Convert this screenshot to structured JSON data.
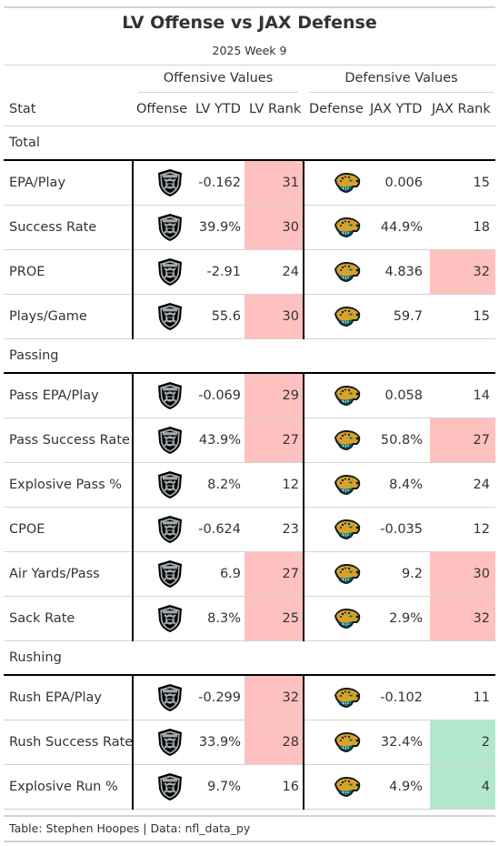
{
  "title": "LV Offense vs JAX Defense",
  "subtitle": "2025 Week 9",
  "spanners": {
    "offense": "Offensive Values",
    "defense": "Defensive Values"
  },
  "columns": {
    "stat": "Stat",
    "offense": "Offense",
    "lv_ytd": "LV YTD",
    "lv_rank": "LV Rank",
    "defense": "Defense",
    "jax_ytd": "JAX YTD",
    "jax_rank": "JAX Rank"
  },
  "colors": {
    "bad": "#ffc0c0",
    "good": "#b3e8cc",
    "raiders": "#000000",
    "jaguars_teal": "#006778",
    "jaguars_gold": "#d7a22a"
  },
  "icons": {
    "offense_logo": "raiders-shield-logo",
    "defense_logo": "jaguars-head-logo"
  },
  "groups": [
    {
      "label": "Total",
      "rows": [
        {
          "stat": "EPA/Play",
          "lv_ytd": "-0.162",
          "lv_rank": "31",
          "jax_ytd": "0.006",
          "jax_rank": "15",
          "lv_hl": "bad",
          "jax_hl": ""
        },
        {
          "stat": "Success Rate",
          "lv_ytd": "39.9%",
          "lv_rank": "30",
          "jax_ytd": "44.9%",
          "jax_rank": "18",
          "lv_hl": "bad",
          "jax_hl": ""
        },
        {
          "stat": "PROE",
          "lv_ytd": "-2.91",
          "lv_rank": "24",
          "jax_ytd": "4.836",
          "jax_rank": "32",
          "lv_hl": "",
          "jax_hl": "bad"
        },
        {
          "stat": "Plays/Game",
          "lv_ytd": "55.6",
          "lv_rank": "30",
          "jax_ytd": "59.7",
          "jax_rank": "15",
          "lv_hl": "bad",
          "jax_hl": ""
        }
      ]
    },
    {
      "label": "Passing",
      "rows": [
        {
          "stat": "Pass EPA/Play",
          "lv_ytd": "-0.069",
          "lv_rank": "29",
          "jax_ytd": "0.058",
          "jax_rank": "14",
          "lv_hl": "bad",
          "jax_hl": ""
        },
        {
          "stat": "Pass Success Rate",
          "lv_ytd": "43.9%",
          "lv_rank": "27",
          "jax_ytd": "50.8%",
          "jax_rank": "27",
          "lv_hl": "bad",
          "jax_hl": "bad"
        },
        {
          "stat": "Explosive Pass %",
          "lv_ytd": "8.2%",
          "lv_rank": "12",
          "jax_ytd": "8.4%",
          "jax_rank": "24",
          "lv_hl": "",
          "jax_hl": ""
        },
        {
          "stat": "CPOE",
          "lv_ytd": "-0.624",
          "lv_rank": "23",
          "jax_ytd": "-0.035",
          "jax_rank": "12",
          "lv_hl": "",
          "jax_hl": ""
        },
        {
          "stat": "Air Yards/Pass",
          "lv_ytd": "6.9",
          "lv_rank": "27",
          "jax_ytd": "9.2",
          "jax_rank": "30",
          "lv_hl": "bad",
          "jax_hl": "bad"
        },
        {
          "stat": "Sack Rate",
          "lv_ytd": "8.3%",
          "lv_rank": "25",
          "jax_ytd": "2.9%",
          "jax_rank": "32",
          "lv_hl": "bad",
          "jax_hl": "bad"
        }
      ]
    },
    {
      "label": "Rushing",
      "rows": [
        {
          "stat": "Rush EPA/Play",
          "lv_ytd": "-0.299",
          "lv_rank": "32",
          "jax_ytd": "-0.102",
          "jax_rank": "11",
          "lv_hl": "bad",
          "jax_hl": ""
        },
        {
          "stat": "Rush Success Rate",
          "lv_ytd": "33.9%",
          "lv_rank": "28",
          "jax_ytd": "32.4%",
          "jax_rank": "2",
          "lv_hl": "bad",
          "jax_hl": "good"
        },
        {
          "stat": "Explosive Run %",
          "lv_ytd": "9.7%",
          "lv_rank": "16",
          "jax_ytd": "4.9%",
          "jax_rank": "4",
          "lv_hl": "",
          "jax_hl": "good"
        }
      ]
    }
  ],
  "footer": "Table: Stephen Hoopes | Data: nfl_data_py"
}
